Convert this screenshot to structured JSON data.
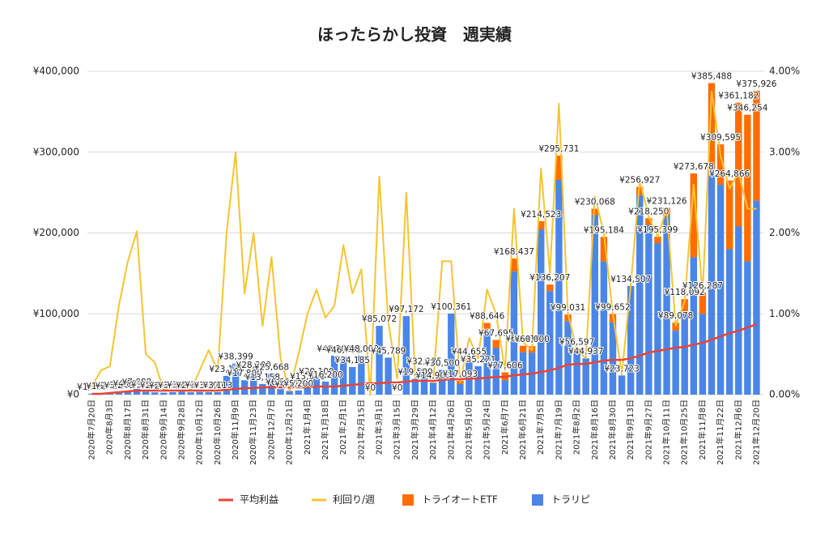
{
  "chart_data": {
    "type": "bar",
    "title": "ほったらかし投資　週実績",
    "categories": [
      "2020年7月20日",
      null,
      "2020年8月3日",
      null,
      "2020年8月17日",
      null,
      "2020年8月31日",
      null,
      "2020年9月14日",
      null,
      "2020年9月28日",
      null,
      "2020年10月12日",
      null,
      "2020年10月26日",
      null,
      "2020年11月9日",
      null,
      "2020年11月23日",
      null,
      "2020年12月7日",
      null,
      "2020年12月21日",
      null,
      "2021年1月4日",
      null,
      "2021年1月18日",
      null,
      "2021年2月1日",
      null,
      "2021年2月15日",
      null,
      "2021年3月1日",
      null,
      "2021年3月15日",
      null,
      "2021年3月29日",
      null,
      "2021年4月12日",
      null,
      "2021年4月26日",
      null,
      "2021年5月10日",
      null,
      "2021年5月24日",
      null,
      "2021年6月7日",
      null,
      "2021年6月21日",
      null,
      "2021年7月5日",
      null,
      "2021年7月19日",
      null,
      "2021年8月2日",
      null,
      "2021年8月16日",
      null,
      "2021年8月30日",
      null,
      "2021年9月13日",
      null,
      "2021年9月27日",
      null,
      "2021年10月11日",
      null,
      "2021年10月25日",
      null,
      "2021年11月8日",
      null,
      "2021年11月22日",
      null,
      "2021年12月6日",
      null,
      "2021年12月20日"
    ],
    "series": [
      {
        "name": "平均利益",
        "type": "line",
        "color": "#ea4335",
        "values": [
          1000,
          1000,
          2000,
          3000,
          4000,
          5000,
          5000,
          5000,
          5000,
          5000,
          5000,
          5000,
          5000,
          5000,
          5000,
          6000,
          7000,
          8000,
          8000,
          9000,
          9000,
          9000,
          9000,
          9000,
          9000,
          10000,
          10000,
          10000,
          11000,
          12000,
          13000,
          14000,
          14000,
          15000,
          15000,
          16000,
          17000,
          17000,
          17000,
          18000,
          19000,
          19000,
          20000,
          20000,
          21000,
          22000,
          22000,
          24000,
          25000,
          26000,
          28000,
          30000,
          33000,
          37000,
          38000,
          38000,
          40000,
          42000,
          43000,
          43000,
          45000,
          48000,
          52000,
          54000,
          56000,
          58000,
          59000,
          62000,
          64000,
          68000,
          72000,
          76000,
          79000,
          83000,
          87000
        ]
      },
      {
        "name": "利回り/週",
        "type": "line",
        "axis": "y2",
        "color": "#f6c431",
        "values": [
          0.1,
          0.3,
          0.35,
          1.1,
          1.65,
          2.02,
          0.5,
          0.4,
          0.05,
          0.1,
          0.15,
          0.05,
          0.3,
          0.55,
          0.3,
          2.0,
          3.0,
          1.25,
          2.0,
          0.85,
          1.7,
          0.45,
          0.05,
          0.5,
          1.0,
          1.3,
          0.95,
          1.1,
          1.85,
          1.25,
          1.55,
          0,
          2.7,
          0.9,
          0.2,
          2.5,
          0.2,
          0.3,
          0.15,
          1.65,
          1.65,
          0.15,
          0.7,
          0.45,
          1.3,
          1.0,
          0.3,
          2.3,
          0.65,
          0.55,
          2.8,
          1.5,
          3.6,
          1.0,
          0.55,
          0.45,
          2.45,
          2.0,
          1.0,
          0.25,
          1.35,
          2.65,
          2.2,
          1.95,
          2.3,
          0.85,
          1.15,
          2.6,
          1.25,
          3.75,
          2.95,
          2.55,
          2.75,
          2.3,
          2.3
        ]
      },
      {
        "name": "トライオートETF",
        "type": "bar",
        "color": "#ff6d01",
        "values": [
          0,
          0,
          0,
          0,
          0,
          0,
          0,
          0,
          0,
          0,
          0,
          0,
          0,
          0,
          0,
          0,
          0,
          0,
          0,
          0,
          0,
          0,
          0,
          0,
          0,
          0,
          0,
          0,
          0,
          0,
          0,
          0,
          0,
          0,
          0,
          0,
          0,
          0,
          0,
          0,
          0,
          4000,
          4000,
          0,
          9000,
          10000,
          10000,
          16000,
          8000,
          8000,
          10000,
          8000,
          30000,
          8000,
          5000,
          0,
          8000,
          30000,
          10000,
          0,
          0,
          10000,
          8000,
          8000,
          10000,
          10000,
          15000,
          103678,
          26287,
          105488,
          50000,
          84866,
          153182,
          181254,
          135926
        ]
      },
      {
        "name": "トラリピ",
        "type": "bar",
        "color": "#4a86e8",
        "values": [
          1200,
          1800,
          2500,
          3200,
          4800,
          7088,
          3500,
          2800,
          2400,
          3000,
          3600,
          2900,
          3300,
          3100,
          3113,
          23136,
          38399,
          17800,
          28300,
          13158,
          25668,
          6800,
          4475,
          5200,
          13900,
          20100,
          16200,
          48200,
          46700,
          34185,
          48000,
          0,
          85072,
          45789,
          0,
          97172,
          19500,
          32335,
          14900,
          30500,
          100361,
          13093,
          40655,
          35221,
          79646,
          57695,
          17606,
          152437,
          52410,
          52000,
          204523,
          128207,
          265731,
          91031,
          51597,
          44937,
          222068,
          165184,
          89652,
          23723,
          134507,
          246927,
          210250,
          187399,
          221126,
          79078,
          103092,
          170000,
          100000,
          280000,
          259595,
          180000,
          208000,
          165000,
          240000
        ]
      }
    ],
    "totals": [
      1200,
      1800,
      2500,
      3200,
      4800,
      7088,
      3500,
      2800,
      2400,
      3000,
      3600,
      2900,
      3300,
      3100,
      3113,
      23136,
      38399,
      17800,
      28300,
      13158,
      25668,
      6800,
      4475,
      5200,
      13900,
      20100,
      16200,
      48200,
      46700,
      34185,
      48000,
      0,
      85072,
      45789,
      0,
      97172,
      19500,
      32335,
      14900,
      30500,
      100361,
      17093,
      44655,
      35221,
      88646,
      67695,
      27606,
      168437,
      60410,
      60000,
      214523,
      136207,
      295731,
      99031,
      56597,
      44937,
      230068,
      195184,
      99652,
      23723,
      134507,
      256927,
      218250,
      195399,
      231126,
      89078,
      118092,
      273678,
      126287,
      385488,
      309595,
      264866,
      361182,
      346254,
      375926
    ],
    "total_labels": [
      "¥1,200",
      "¥1,800",
      "¥2,500",
      "¥3,200",
      "¥4,800",
      "¥7,088",
      "¥3,500",
      "¥2,800",
      "¥2,400",
      "¥3,000",
      "¥3,600",
      "¥2,900",
      "¥3,300",
      "¥3,100",
      "¥3,113",
      "¥23,136",
      "¥38,399",
      "¥17,800",
      "¥28,300",
      "¥13,158",
      "¥25,668",
      "¥6,800",
      "¥4,475",
      "¥5,200",
      "¥13,900",
      "¥20,100",
      "¥16,200",
      "¥48,200",
      "¥46,700",
      "¥34,185",
      "¥48,000",
      "¥0",
      "¥85,072",
      "¥45,789",
      "¥0",
      "¥97,172",
      "¥19,500",
      "¥32,335",
      "¥14,900",
      "¥30,500",
      "¥100,361",
      "¥17,093",
      "¥44,655",
      "¥35,221",
      "¥88,646",
      "¥67,695",
      "¥27,606",
      "¥168,437",
      "¥60,410",
      "¥60,000",
      "¥214,523",
      "¥136,207",
      "¥295,731",
      "¥99,031",
      "¥56,597",
      "¥44,937",
      "¥230,068",
      "¥195,184",
      "¥99,652",
      "¥23,723",
      "¥134,507",
      "¥256,927",
      "¥218,250",
      "¥195,399",
      "¥231,126",
      "¥89,078",
      "¥118,092",
      "¥273,678",
      "¥126,287",
      "¥385,488",
      "¥309,595",
      "¥264,866",
      "¥361,182",
      "¥346,254",
      "¥375,926"
    ],
    "ylim": [
      0,
      400000
    ],
    "yticks": [
      {
        "value": 0,
        "label": "¥0"
      },
      {
        "value": 100000,
        "label": "¥100,000"
      },
      {
        "value": 200000,
        "label": "¥200,000"
      },
      {
        "value": 300000,
        "label": "¥300,000"
      },
      {
        "value": 400000,
        "label": "¥400,000"
      }
    ],
    "y2lim": [
      0,
      4
    ],
    "y2ticks": [
      {
        "value": 0,
        "label": "0.00%"
      },
      {
        "value": 1,
        "label": "1.00%"
      },
      {
        "value": 2,
        "label": "2.00%"
      },
      {
        "value": 3,
        "label": "3.00%"
      },
      {
        "value": 4,
        "label": "4.00%"
      }
    ],
    "grid": true,
    "legend": "bottom"
  }
}
